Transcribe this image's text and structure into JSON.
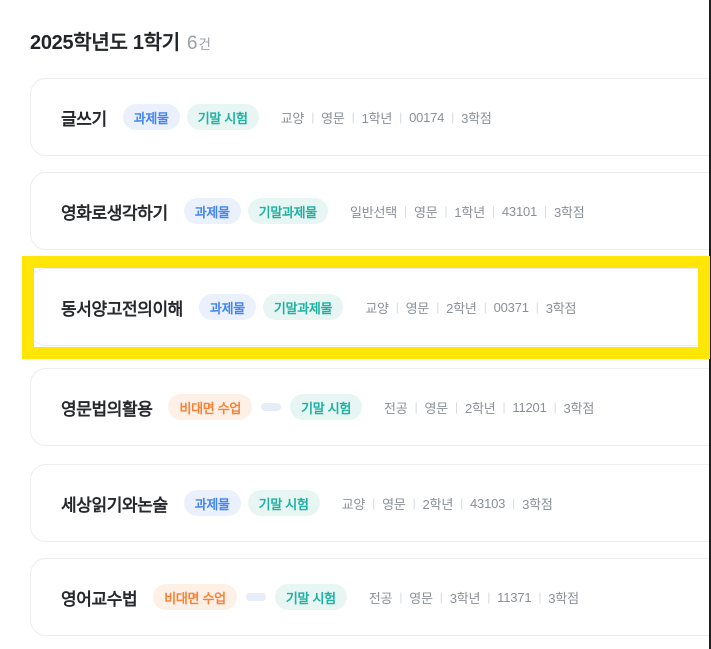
{
  "header": {
    "title": "2025학년도 1학기",
    "count_number": "6",
    "count_unit": "건"
  },
  "meta_separator": "|",
  "colors": {
    "highlight_yellow": "#ffe606",
    "badge_blue": "#4285f4",
    "badge_teal": "#1fb1a3",
    "badge_orange": "#fb8136"
  },
  "courses": [
    {
      "name": "글쓰기",
      "badges": [
        {
          "label": "과제물",
          "style": "blue"
        },
        {
          "label": "기말 시험",
          "style": "teal"
        }
      ],
      "meta": [
        "교양",
        "영문",
        "1학년",
        "00174",
        "3학점"
      ],
      "highlighted": false
    },
    {
      "name": "영화로생각하기",
      "badges": [
        {
          "label": "과제물",
          "style": "blue"
        },
        {
          "label": "기말과제물",
          "style": "teal"
        }
      ],
      "meta": [
        "일반선택",
        "영문",
        "1학년",
        "43101",
        "3학점"
      ],
      "highlighted": false
    },
    {
      "name": "동서양고전의이해",
      "badges": [
        {
          "label": "과제물",
          "style": "blue"
        },
        {
          "label": "기말과제물",
          "style": "teal"
        }
      ],
      "meta": [
        "교양",
        "영문",
        "2학년",
        "00371",
        "3학점"
      ],
      "highlighted": true
    },
    {
      "name": "영문법의활용",
      "badges": [
        {
          "label": "비대면 수업",
          "style": "orange"
        },
        {
          "label": "기말 시험",
          "style": "teal"
        }
      ],
      "has_dash_between_badges": true,
      "meta": [
        "전공",
        "영문",
        "2학년",
        "11201",
        "3학점"
      ],
      "highlighted": false
    },
    {
      "name": "세상읽기와논술",
      "badges": [
        {
          "label": "과제물",
          "style": "blue"
        },
        {
          "label": "기말 시험",
          "style": "teal"
        }
      ],
      "meta": [
        "교양",
        "영문",
        "2학년",
        "43103",
        "3학점"
      ],
      "highlighted": false
    },
    {
      "name": "영어교수법",
      "badges": [
        {
          "label": "비대면 수업",
          "style": "orange"
        },
        {
          "label": "기말 시험",
          "style": "teal"
        }
      ],
      "has_dash_between_badges": true,
      "meta": [
        "전공",
        "영문",
        "3학년",
        "11371",
        "3학점"
      ],
      "highlighted": false
    }
  ]
}
